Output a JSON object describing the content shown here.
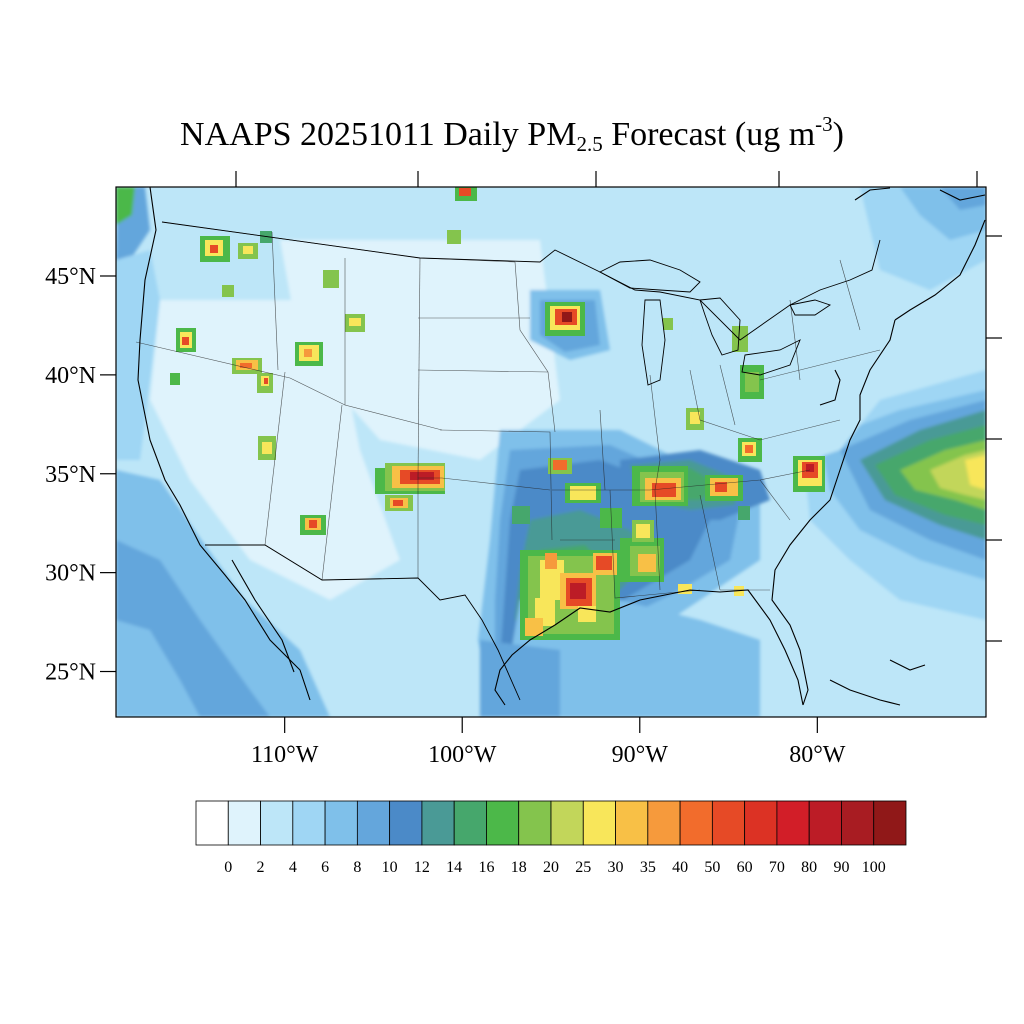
{
  "title": {
    "prefix": "NAAPS 20251011 Daily PM",
    "subscript": "2.5",
    "middle": " Forecast (ug m",
    "superscript": "-3",
    "suffix": ")"
  },
  "map": {
    "lon_range": [
      -119.5,
      -70.5
    ],
    "lat_range": [
      22.7,
      49.5
    ],
    "lat_labels": [
      {
        "value": 45,
        "label": "45°N"
      },
      {
        "value": 40,
        "label": "40°N"
      },
      {
        "value": 35,
        "label": "35°N"
      },
      {
        "value": 30,
        "label": "30°N"
      },
      {
        "value": 25,
        "label": "25°N"
      }
    ],
    "lon_labels": [
      {
        "value": -110,
        "label": "110°W"
      },
      {
        "value": -100,
        "label": "100°W"
      },
      {
        "value": -90,
        "label": "90°W"
      },
      {
        "value": -80,
        "label": "80°W"
      }
    ]
  },
  "colorbar": {
    "labels": [
      "0",
      "2",
      "4",
      "6",
      "8",
      "10",
      "12",
      "14",
      "16",
      "18",
      "20",
      "25",
      "30",
      "35",
      "40",
      "50",
      "60",
      "70",
      "80",
      "90",
      "100"
    ],
    "colors": [
      "#ffffff",
      "#dff3fc",
      "#bde6f8",
      "#9fd6f4",
      "#7fc0ea",
      "#64a6dc",
      "#4b8ac8",
      "#4a9a96",
      "#46a76c",
      "#4cb849",
      "#84c44d",
      "#c2d65a",
      "#f8e65a",
      "#f8c046",
      "#f69a3c",
      "#f26c2c",
      "#e64a26",
      "#dc3224",
      "#d21e28",
      "#bc1c26",
      "#a81c22",
      "#901818"
    ]
  }
}
